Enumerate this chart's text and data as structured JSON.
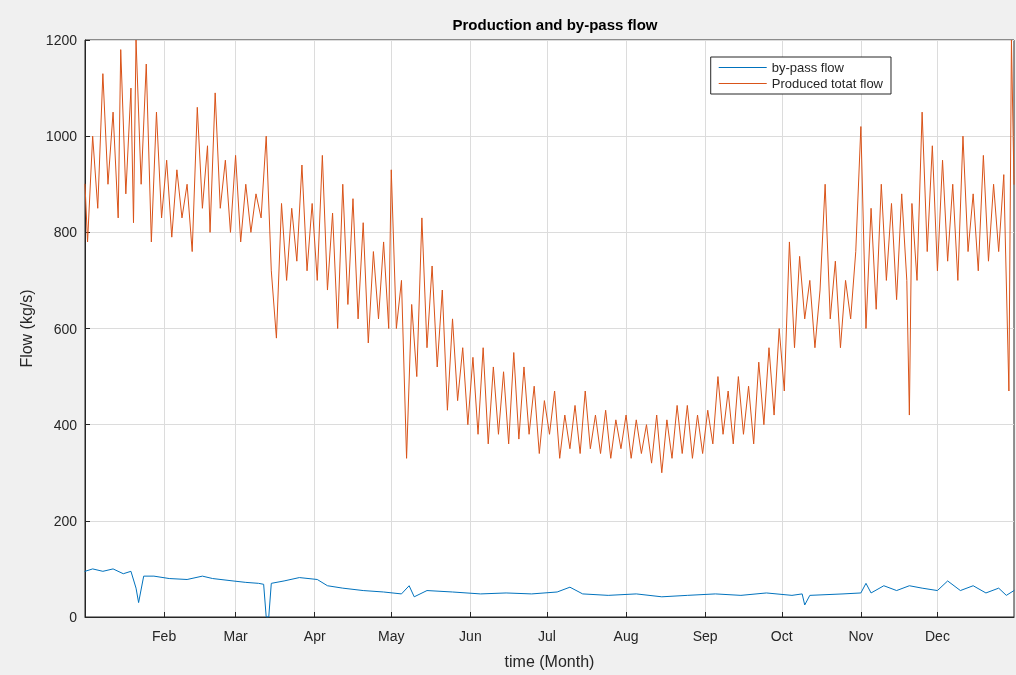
{
  "chart_data": {
    "type": "line",
    "title": "Production and by-pass flow",
    "xlabel": "time (Month)",
    "ylabel": "Flow (kg/s)",
    "xlim": [
      "--01-01",
      "--12-31"
    ],
    "xticks": [
      {
        "value": "--02-01",
        "label": "Feb"
      },
      {
        "value": "--03-01",
        "label": "Mar"
      },
      {
        "value": "--04-01",
        "label": "Apr"
      },
      {
        "value": "--05-01",
        "label": "May"
      },
      {
        "value": "--06-01",
        "label": "Jun"
      },
      {
        "value": "--07-01",
        "label": "Jul"
      },
      {
        "value": "--08-01",
        "label": "Aug"
      },
      {
        "value": "--09-01",
        "label": "Sep"
      },
      {
        "value": "--10-01",
        "label": "Oct"
      },
      {
        "value": "--11-01",
        "label": "Nov"
      },
      {
        "value": "--12-01",
        "label": "Dec"
      }
    ],
    "ylim": [
      0,
      1200
    ],
    "yticks": [
      0,
      200,
      400,
      600,
      800,
      1000,
      1200
    ],
    "grid": true,
    "legend": "top right",
    "marker": "none",
    "line_style": "solid",
    "series": [
      {
        "name": "by-pass flow",
        "color": "#0072bd",
        "x": [
          "--01-01",
          "--01-04",
          "--01-08",
          "--01-12",
          "--01-16",
          "--01-19",
          "--01-21",
          "--01-22",
          "--01-24",
          "--01-28",
          "--02-03",
          "--02-10",
          "--02-16",
          "--02-20",
          "--02-28",
          "--03-05",
          "--03-10",
          "--03-12",
          "--03-13",
          "--03-14",
          "--03-15",
          "--03-20",
          "--03-26",
          "--04-02",
          "--04-06",
          "--04-12",
          "--04-20",
          "--04-28",
          "--05-05",
          "--05-08",
          "--05-10",
          "--05-15",
          "--05-25",
          "--06-05",
          "--06-15",
          "--06-25",
          "--07-05",
          "--07-10",
          "--07-15",
          "--07-25",
          "--08-05",
          "--08-15",
          "--08-25",
          "--09-05",
          "--09-15",
          "--09-25",
          "--10-05",
          "--10-09",
          "--10-10",
          "--10-12",
          "--10-25",
          "--11-01",
          "--11-03",
          "--11-05",
          "--11-10",
          "--11-15",
          "--11-20",
          "--11-25",
          "--12-01",
          "--12-05",
          "--12-10",
          "--12-15",
          "--12-20",
          "--12-25",
          "--12-28",
          "--12-31"
        ],
        "values": [
          95,
          100,
          95,
          100,
          90,
          95,
          60,
          30,
          85,
          85,
          80,
          78,
          85,
          80,
          75,
          72,
          70,
          68,
          0,
          0,
          70,
          75,
          82,
          78,
          65,
          60,
          55,
          52,
          48,
          65,
          42,
          55,
          52,
          48,
          50,
          48,
          52,
          62,
          48,
          45,
          48,
          42,
          45,
          48,
          45,
          50,
          45,
          48,
          25,
          45,
          48,
          50,
          70,
          50,
          65,
          55,
          65,
          60,
          55,
          75,
          55,
          65,
          50,
          60,
          45,
          55
        ]
      },
      {
        "name": "Produced totat flow",
        "color": "#d95319",
        "x": [
          "--01-01",
          "--01-02",
          "--01-04",
          "--01-06",
          "--01-08",
          "--01-10",
          "--01-12",
          "--01-14",
          "--01-15",
          "--01-17",
          "--01-19",
          "--01-20",
          "--01-21",
          "--01-23",
          "--01-25",
          "--01-27",
          "--01-29",
          "--01-31",
          "--02-02",
          "--02-04",
          "--02-06",
          "--02-08",
          "--02-10",
          "--02-12",
          "--02-14",
          "--02-16",
          "--02-18",
          "--02-19",
          "--02-21",
          "--02-23",
          "--02-25",
          "--02-27",
          "--03-01",
          "--03-03",
          "--03-05",
          "--03-07",
          "--03-09",
          "--03-11",
          "--03-13",
          "--03-15",
          "--03-17",
          "--03-19",
          "--03-21",
          "--03-23",
          "--03-25",
          "--03-27",
          "--03-29",
          "--03-31",
          "--04-02",
          "--04-04",
          "--04-06",
          "--04-08",
          "--04-10",
          "--04-12",
          "--04-14",
          "--04-16",
          "--04-18",
          "--04-20",
          "--04-22",
          "--04-24",
          "--04-26",
          "--04-28",
          "--04-30",
          "--05-01",
          "--05-03",
          "--05-05",
          "--05-07",
          "--05-09",
          "--05-11",
          "--05-13",
          "--05-15",
          "--05-17",
          "--05-19",
          "--05-21",
          "--05-23",
          "--05-25",
          "--05-27",
          "--05-29",
          "--05-31",
          "--06-02",
          "--06-04",
          "--06-06",
          "--06-08",
          "--06-10",
          "--06-12",
          "--06-14",
          "--06-16",
          "--06-18",
          "--06-20",
          "--06-22",
          "--06-24",
          "--06-26",
          "--06-28",
          "--06-30",
          "--07-02",
          "--07-04",
          "--07-06",
          "--07-08",
          "--07-10",
          "--07-12",
          "--07-14",
          "--07-16",
          "--07-18",
          "--07-20",
          "--07-22",
          "--07-24",
          "--07-26",
          "--07-28",
          "--07-30",
          "--08-01",
          "--08-03",
          "--08-05",
          "--08-07",
          "--08-09",
          "--08-11",
          "--08-13",
          "--08-15",
          "--08-17",
          "--08-19",
          "--08-21",
          "--08-23",
          "--08-25",
          "--08-27",
          "--08-29",
          "--08-31",
          "--09-02",
          "--09-04",
          "--09-06",
          "--09-08",
          "--09-10",
          "--09-12",
          "--09-14",
          "--09-16",
          "--09-18",
          "--09-20",
          "--09-22",
          "--09-24",
          "--09-26",
          "--09-28",
          "--09-30",
          "--10-02",
          "--10-04",
          "--10-06",
          "--10-08",
          "--10-10",
          "--10-12",
          "--10-14",
          "--10-16",
          "--10-18",
          "--10-20",
          "--10-22",
          "--10-24",
          "--10-26",
          "--10-28",
          "--10-30",
          "--11-01",
          "--11-03",
          "--11-05",
          "--11-07",
          "--11-09",
          "--11-11",
          "--11-13",
          "--11-15",
          "--11-17",
          "--11-19",
          "--11-20",
          "--11-21",
          "--11-23",
          "--11-25",
          "--11-27",
          "--11-29",
          "--12-01",
          "--12-03",
          "--12-05",
          "--12-07",
          "--12-09",
          "--12-11",
          "--12-13",
          "--12-15",
          "--12-17",
          "--12-19",
          "--12-21",
          "--12-23",
          "--12-25",
          "--12-27",
          "--12-29",
          "--12-30",
          "--12-31"
        ],
        "values": [
          900,
          780,
          1000,
          850,
          1130,
          900,
          1050,
          830,
          1180,
          880,
          1100,
          820,
          1200,
          900,
          1150,
          780,
          1050,
          830,
          950,
          790,
          930,
          830,
          900,
          760,
          1060,
          850,
          980,
          800,
          1090,
          850,
          950,
          800,
          960,
          780,
          900,
          800,
          880,
          830,
          1000,
          720,
          580,
          860,
          700,
          850,
          740,
          940,
          720,
          860,
          700,
          960,
          680,
          840,
          600,
          900,
          650,
          870,
          620,
          820,
          570,
          760,
          620,
          780,
          600,
          930,
          600,
          700,
          330,
          650,
          500,
          830,
          560,
          730,
          520,
          680,
          430,
          620,
          450,
          560,
          400,
          540,
          380,
          560,
          360,
          520,
          380,
          510,
          360,
          550,
          370,
          520,
          380,
          480,
          340,
          450,
          380,
          470,
          330,
          420,
          350,
          440,
          340,
          470,
          350,
          420,
          340,
          430,
          330,
          410,
          350,
          420,
          330,
          410,
          340,
          400,
          320,
          420,
          300,
          410,
          330,
          440,
          340,
          440,
          330,
          420,
          340,
          430,
          360,
          500,
          380,
          470,
          360,
          500,
          380,
          480,
          360,
          530,
          400,
          560,
          420,
          600,
          470,
          780,
          560,
          750,
          620,
          700,
          560,
          680,
          900,
          620,
          740,
          560,
          700,
          620,
          760,
          1020,
          600,
          850,
          640,
          900,
          700,
          860,
          660,
          880,
          700,
          420,
          860,
          700,
          1050,
          760,
          980,
          720,
          950,
          740,
          900,
          700,
          1000,
          760,
          880,
          720,
          960,
          740,
          900,
          760,
          920,
          470,
          1200,
          900
        ]
      }
    ]
  }
}
